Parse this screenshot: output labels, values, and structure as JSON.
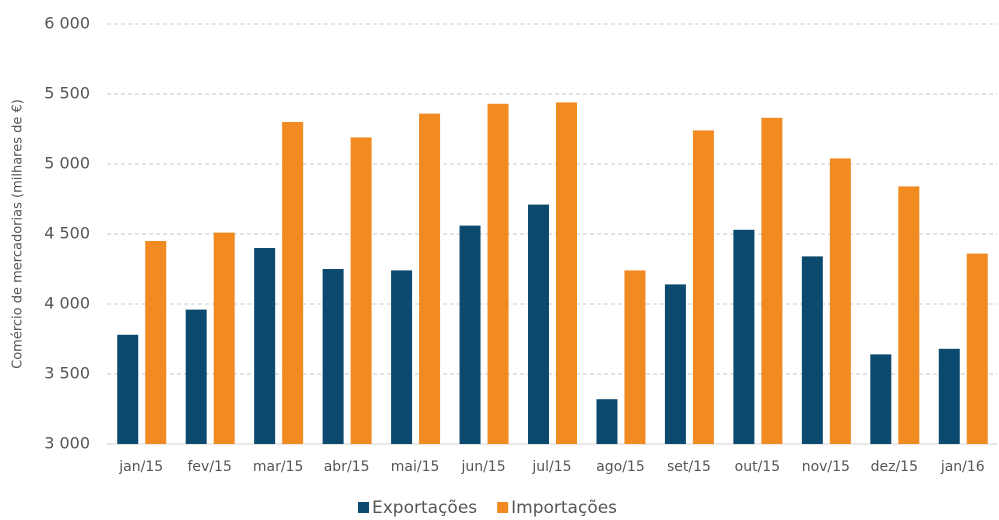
{
  "chart_data": {
    "type": "bar",
    "y_label": "Comércio de mercadorias (milhares de €)",
    "categories": [
      "jan/15",
      "fev/15",
      "mar/15",
      "abr/15",
      "mai/15",
      "jun/15",
      "jul/15",
      "ago/15",
      "set/15",
      "out/15",
      "nov/15",
      "dez/15",
      "jan/16"
    ],
    "series": [
      {
        "name": "Exportações",
        "color": "#0b4a6e",
        "values": [
          3780,
          3960,
          4400,
          4250,
          4240,
          4560,
          4710,
          3320,
          4140,
          4530,
          4340,
          3640,
          3680
        ]
      },
      {
        "name": "Importações",
        "color": "#f28a22",
        "values": [
          4450,
          4510,
          5300,
          5190,
          5360,
          5430,
          5440,
          4240,
          5240,
          5330,
          5040,
          4840,
          4360
        ]
      }
    ],
    "ylim": [
      3000,
      6000
    ],
    "yticks": [
      {
        "value": 3000,
        "label": "3 000"
      },
      {
        "value": 3500,
        "label": "3 500"
      },
      {
        "value": 4000,
        "label": "4 000"
      },
      {
        "value": 4500,
        "label": "4 500"
      },
      {
        "value": 5000,
        "label": "5 000"
      },
      {
        "value": 5500,
        "label": "5 500"
      },
      {
        "value": 6000,
        "label": "6 000"
      }
    ],
    "grid": true,
    "legend": "bottom"
  }
}
